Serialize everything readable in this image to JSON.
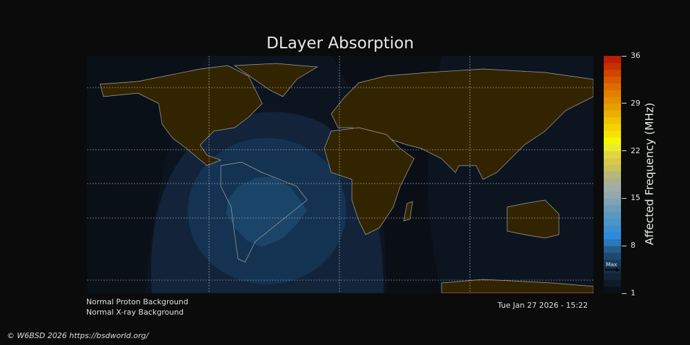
{
  "title": "DLayer Absorption",
  "colorbar": {
    "label": "Affected Frequency (MHz)",
    "ticks": [
      "36",
      "29",
      "22",
      "15",
      "8",
      "1"
    ],
    "range": [
      1,
      36
    ],
    "max_marker_label": "Max",
    "max_marker_value": 4.5,
    "colors": [
      "#0b0f17",
      "#0f1a28",
      "#132438",
      "#162d46",
      "#1a3a5a",
      "#1f4a70",
      "#245c8a",
      "#2a78bd",
      "#2e8ad8",
      "#3a90d0",
      "#4a94c8",
      "#5a97c0",
      "#6a9cbb",
      "#7fa2b4",
      "#93a8ad",
      "#a0acaa",
      "#a9b092",
      "#b8b77a",
      "#cbc15a",
      "#d8c94a",
      "#e2d640",
      "#ecea30",
      "#f8f500",
      "#f6e200",
      "#f4d200",
      "#efc200",
      "#eab000",
      "#e79f00",
      "#e48e00",
      "#e27e00",
      "#de6a00",
      "#d85800",
      "#d04400",
      "#c83000",
      "#c01c00",
      "#b80800"
    ]
  },
  "status": {
    "proton": "Normal Proton Background",
    "xray": "Normal X-ray Background",
    "timestamp": "Tue Jan 27 2026 - 15:22"
  },
  "credit": "© W6BSD 2026 https://bsdworld.org/",
  "map_colors": {
    "background": "#0c1420",
    "night": "#0a0e14",
    "land": "#332400",
    "coast": "#a8a8a8",
    "level1": "#12233a",
    "level2": "#143352",
    "level3": "#1a4468"
  }
}
